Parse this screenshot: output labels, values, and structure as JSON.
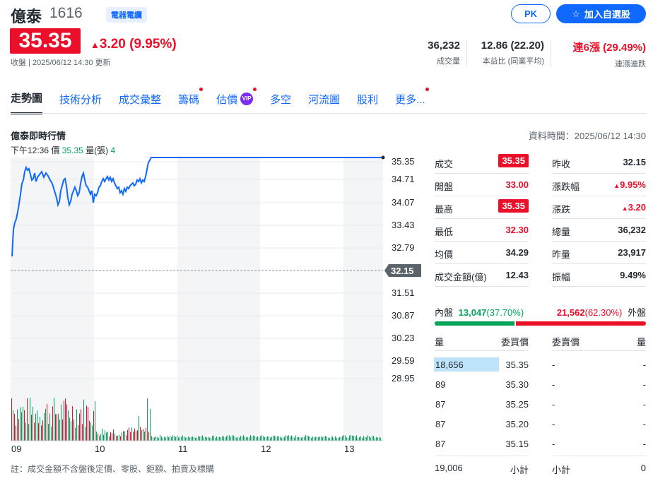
{
  "header": {
    "name": "億泰",
    "code": "1616",
    "sector": "電器電纜",
    "pk_label": "PK",
    "watch_label": "加入自選股",
    "price": "35.35",
    "change": "3.20 (9.95%)",
    "close_time": "收盤 | 2025/06/12 14:30 更新"
  },
  "stats": [
    {
      "value": "36,232",
      "label": "成交量"
    },
    {
      "value": "12.86 (22.20)",
      "label": "本益比 (同業平均)"
    },
    {
      "value": "連6漲 (29.49%)",
      "label": "連漲連跌"
    }
  ],
  "tabs": [
    "走勢圖",
    "技術分析",
    "成交彙整",
    "籌碼",
    "估價",
    "多空",
    "河流圖",
    "股利",
    "更多..."
  ],
  "vip_label": "VIP",
  "section": {
    "title": "億泰即時行情",
    "data_time": "資料時間：2025/06/12 14:30",
    "hover_time": "下午12:36",
    "hover_price_label": "價",
    "hover_price": "35.35",
    "hover_vol_label": "量(張)",
    "hover_vol": "4"
  },
  "chart_data": {
    "type": "line",
    "x_ticks": [
      "09",
      "10",
      "11",
      "12",
      "13"
    ],
    "y_ticks": [
      "35.35",
      "34.71",
      "34.07",
      "33.43",
      "32.79",
      "32.15",
      "31.51",
      "30.87",
      "30.23",
      "29.59",
      "28.95"
    ],
    "ylim": [
      28.95,
      35.35
    ],
    "reference_price": "32.15",
    "colors": {
      "line": "#0f69ff",
      "up": "#eb0f29",
      "down": "#00a55a"
    }
  },
  "quotes": {
    "left": [
      {
        "label": "成交",
        "value": "35.35"
      },
      {
        "label": "開盤",
        "value": "33.00"
      },
      {
        "label": "最高",
        "value": "35.35"
      },
      {
        "label": "最低",
        "value": "32.30"
      },
      {
        "label": "均價",
        "value": "34.29"
      },
      {
        "label": "成交金額(億)",
        "value": "12.43"
      }
    ],
    "right": [
      {
        "label": "昨收",
        "value": "32.15"
      },
      {
        "label": "漲跌幅",
        "value": "9.95%"
      },
      {
        "label": "漲跌",
        "value": "3.20"
      },
      {
        "label": "總量",
        "value": "36,232"
      },
      {
        "label": "昨量",
        "value": "23,917"
      },
      {
        "label": "振幅",
        "value": "9.49%"
      }
    ]
  },
  "inout": {
    "in_label": "內盤",
    "in_value": "13,047",
    "in_pct": "(37.70%)",
    "out_value": "21,562",
    "out_pct": "(62.30%)",
    "out_label": "外盤",
    "in_fraction": 0.377
  },
  "book": {
    "headers": [
      "量",
      "委買價",
      "委賣價",
      "量"
    ],
    "rows": [
      {
        "bid_vol": "18,656",
        "bid": "35.35",
        "ask": "-",
        "ask_vol": "-"
      },
      {
        "bid_vol": "89",
        "bid": "35.30",
        "ask": "-",
        "ask_vol": "-"
      },
      {
        "bid_vol": "87",
        "bid": "35.25",
        "ask": "-",
        "ask_vol": "-"
      },
      {
        "bid_vol": "87",
        "bid": "35.20",
        "ask": "-",
        "ask_vol": "-"
      },
      {
        "bid_vol": "87",
        "bid": "35.15",
        "ask": "-",
        "ask_vol": "-"
      }
    ],
    "bid_total": "19,006",
    "bid_total_label": "小計",
    "ask_total_label": "小計",
    "ask_total": "0"
  },
  "note": "註：成交金額不含盤後定價、零股、鉅額、拍賣及標購"
}
